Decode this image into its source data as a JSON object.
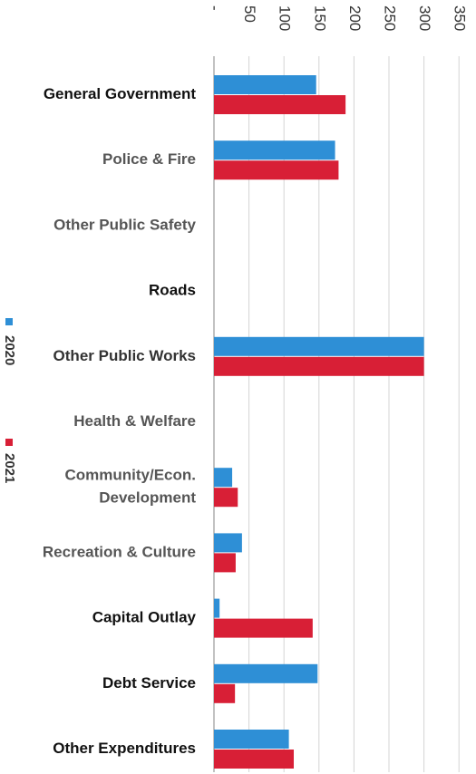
{
  "chart_data": {
    "type": "bar",
    "orientation": "horizontal",
    "categories": [
      "General Government",
      "Police & Fire",
      "Other Public Safety",
      "Roads",
      "Other Public Works",
      "Health & Welfare",
      "Community/Econ. Development",
      "Recreation & Culture",
      "Capital Outlay",
      "Debt Service",
      "Other Expenditures"
    ],
    "category_label_lines": [
      [
        "General Government"
      ],
      [
        "Police & Fire"
      ],
      [
        "Other Public Safety"
      ],
      [
        "Roads"
      ],
      [
        "Other Public Works"
      ],
      [
        "Health & Welfare"
      ],
      [
        "Community/Econ.",
        "Development"
      ],
      [
        "Recreation & Culture"
      ],
      [
        "Capital Outlay"
      ],
      [
        "Debt Service"
      ],
      [
        "Other Expenditures"
      ]
    ],
    "category_label_colors": [
      "#111111",
      "#555555",
      "#555555",
      "#111111",
      "#333333",
      "#555555",
      "#555555",
      "#555555",
      "#111111",
      "#111111",
      "#111111"
    ],
    "series": [
      {
        "name": "2020",
        "color": "#2e8fd6",
        "values": [
          146,
          173,
          0,
          0,
          300,
          0,
          26,
          40,
          8,
          148,
          107
        ]
      },
      {
        "name": "2021",
        "color": "#d81f36",
        "values": [
          188,
          178,
          0,
          0,
          300,
          0,
          34,
          31,
          141,
          30,
          114
        ]
      }
    ],
    "xlim": [
      0,
      350
    ],
    "tick_values": [
      0,
      50,
      100,
      150,
      200,
      250,
      300,
      350
    ],
    "tick_labels": [
      "-",
      "50",
      "100",
      "150",
      "200",
      "250",
      "300",
      "350"
    ],
    "grid": true,
    "legend_position": "left",
    "title": "",
    "xlabel": "",
    "ylabel": ""
  }
}
